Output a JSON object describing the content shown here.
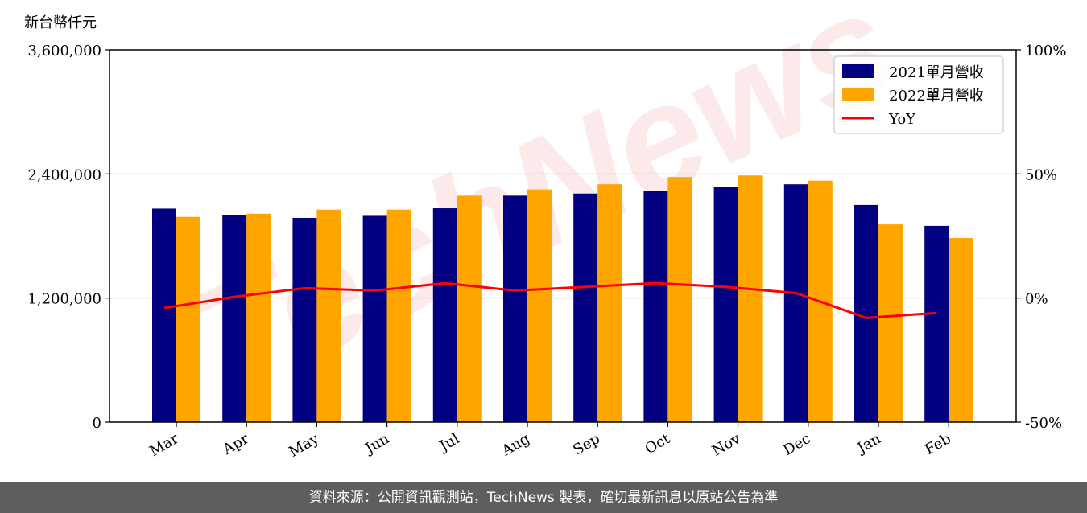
{
  "chart_data": {
    "type": "bar",
    "units": {
      "left_axis": "新台幣仟元"
    },
    "categories": [
      "Mar",
      "Apr",
      "May",
      "Jun",
      "Jul",
      "Aug",
      "Sep",
      "Oct",
      "Nov",
      "Dec",
      "Jan",
      "Feb"
    ],
    "series": [
      {
        "name": "2021單月營收",
        "type": "bar",
        "axis": "left",
        "color": "#000080",
        "values": [
          2065000,
          2005000,
          1975000,
          1995000,
          2068000,
          2190000,
          2210000,
          2235000,
          2275000,
          2300000,
          2100000,
          1898000
        ]
      },
      {
        "name": "2022單月營收",
        "type": "bar",
        "axis": "left",
        "color": "#ffa500",
        "values": [
          1985000,
          2015000,
          2055000,
          2055000,
          2190000,
          2250000,
          2300000,
          2370000,
          2385000,
          2335000,
          1912000,
          1780000
        ]
      },
      {
        "name": "YoY",
        "type": "line",
        "axis": "right",
        "color": "#ff0000",
        "values": [
          -4,
          0.5,
          4,
          3,
          6,
          3,
          4.5,
          6,
          4.5,
          2,
          -8,
          -6
        ]
      }
    ],
    "ylim_left": [
      0,
      3600000
    ],
    "yticks_left": [
      "0",
      "1,200,000",
      "2,400,000",
      "3,600,000"
    ],
    "ylim_right": [
      -50,
      100
    ],
    "yticks_right": [
      "-50%",
      "0%",
      "50%",
      "100%"
    ],
    "grid": "horizontal",
    "legend_position": "top-right"
  },
  "watermark": {
    "text": "TechNews"
  },
  "footer": {
    "text": "資料來源：公開資訊觀測站，TechNews 製表，確切最新訊息以原站公告為準"
  }
}
